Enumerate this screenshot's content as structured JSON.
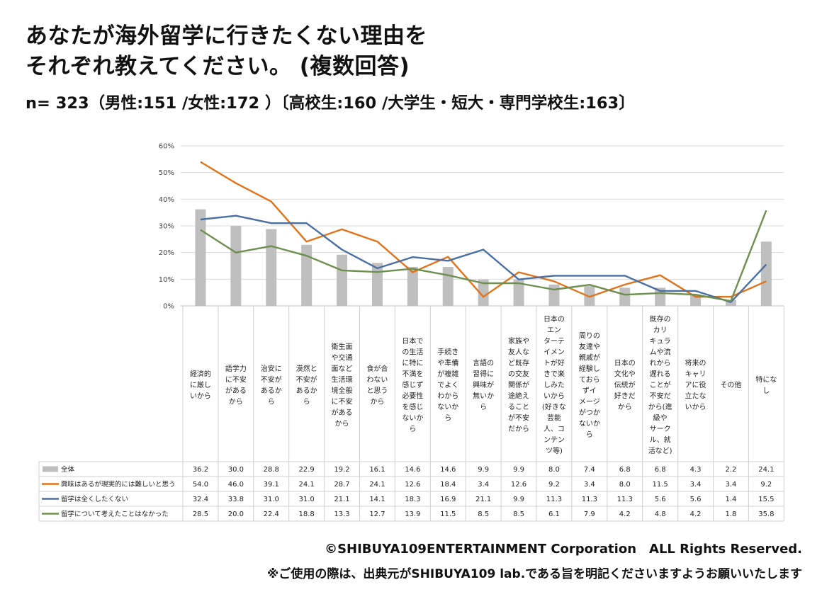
{
  "title": {
    "line1": "あなたが海外留学に行きたくない理由を",
    "line2": "それぞれ教えてください。 (複数回答)"
  },
  "sample_note": "n= 323（男性:151 /女性:172 ）〔高校生:160 /大学生・短大・専門学校生:163〕",
  "footer": {
    "copyright": "©SHIBUYA109ENTERTAINMENT Corporation　ALL Rights Reserved.",
    "notice": "※ご使用の際は、出典元がSHIBUYA109 lab.である旨を明記くださいますようお願いいたします"
  },
  "chart_data": {
    "type": "bar",
    "ylim": [
      0,
      60
    ],
    "yticks": [
      "0%",
      "10%",
      "20%",
      "30%",
      "40%",
      "50%",
      "60%"
    ],
    "grid": true,
    "categories": [
      [
        "経済的",
        "に厳し",
        "いから"
      ],
      [
        "語学力",
        "に不安",
        "がある",
        "から"
      ],
      [
        "治安に",
        "不安が",
        "あるか",
        "ら"
      ],
      [
        "漠然と",
        "不安が",
        "あるか",
        "ら"
      ],
      [
        "衛生面",
        "や交通",
        "面など",
        "生活環",
        "境全般",
        "に不安",
        "がある",
        "から"
      ],
      [
        "食が合",
        "わない",
        "と思う",
        "から"
      ],
      [
        "日本で",
        "の生活",
        "に特に",
        "不満を",
        "感じず",
        "必要性",
        "を感じ",
        "ないか",
        "ら"
      ],
      [
        "手続き",
        "や準備",
        "が複雑",
        "でよく",
        "わから",
        "ないか",
        "ら"
      ],
      [
        "言語の",
        "習得に",
        "興味が",
        "無いか",
        "ら"
      ],
      [
        "家族や",
        "友人な",
        "ど既存",
        "の交友",
        "関係が",
        "途絶え",
        "ること",
        "が不安",
        "だから"
      ],
      [
        "日本の",
        "エン",
        "ターテ",
        "イメン",
        "トが好",
        "きで楽",
        "しみた",
        "いから",
        "(好きな",
        "芸能",
        "人、コ",
        "ンテン",
        "ツ等)"
      ],
      [
        "周りの",
        "友達や",
        "親戚が",
        "経験し",
        "ておら",
        "ずイ",
        "メージ",
        "がつか",
        "ないか",
        "ら"
      ],
      [
        "日本の",
        "文化や",
        "伝統が",
        "好きだ",
        "から"
      ],
      [
        "既存の",
        "カリ",
        "キュラ",
        "ムや流",
        "れから",
        "遅れる",
        "ことが",
        "不安だ",
        "から(進",
        "級や",
        "サーク",
        "ル、就",
        "活など)"
      ],
      [
        "将来の",
        "キャリ",
        "アに役",
        "立たな",
        "いから"
      ],
      [
        "その他"
      ],
      [
        "特にな",
        "し"
      ]
    ],
    "series": [
      {
        "name": "全体",
        "kind": "bar",
        "color": "#bfbfbf",
        "values": [
          36.2,
          30.0,
          28.8,
          22.9,
          19.2,
          16.1,
          14.6,
          14.6,
          9.9,
          9.9,
          8.0,
          7.4,
          6.8,
          6.8,
          4.3,
          2.2,
          24.1
        ],
        "labels": [
          "36.2",
          "30.0",
          "28.8",
          "22.9",
          "19.2",
          "16.1",
          "14.6",
          "14.6",
          "9.9",
          "9.9",
          "8.0",
          "7.4",
          "6.8",
          "6.8",
          "4.3",
          "2.2",
          "24.1"
        ]
      },
      {
        "name": "興味はあるが現実的には難しいと思う",
        "kind": "line",
        "color": "#e2731b",
        "values": [
          54.0,
          46.0,
          39.1,
          24.1,
          28.7,
          24.1,
          12.6,
          18.4,
          3.4,
          12.6,
          9.2,
          3.4,
          8.0,
          11.5,
          3.4,
          3.4,
          9.2
        ],
        "labels": [
          "54.0",
          "46.0",
          "39.1",
          "24.1",
          "28.7",
          "24.1",
          "12.6",
          "18.4",
          "3.4",
          "12.6",
          "9.2",
          "3.4",
          "8.0",
          "11.5",
          "3.4",
          "3.4",
          "9.2"
        ]
      },
      {
        "name": "留学は全くしたくない",
        "kind": "line",
        "color": "#4a6fa5",
        "values": [
          32.4,
          33.8,
          31.0,
          31.0,
          21.1,
          14.1,
          18.3,
          16.9,
          21.1,
          9.9,
          11.3,
          11.3,
          11.3,
          5.6,
          5.6,
          1.4,
          15.5
        ],
        "labels": [
          "32.4",
          "33.8",
          "31.0",
          "31.0",
          "21.1",
          "14.1",
          "18.3",
          "16.9",
          "21.1",
          "9.9",
          "11.3",
          "11.3",
          "11.3",
          "5.6",
          "5.6",
          "1.4",
          "15.5"
        ]
      },
      {
        "name": "留学について考えたことはなかった",
        "kind": "line",
        "color": "#6e8f4f",
        "values": [
          28.5,
          20.0,
          22.4,
          18.8,
          13.3,
          12.7,
          13.9,
          11.5,
          8.5,
          8.5,
          6.1,
          7.9,
          4.2,
          4.8,
          4.2,
          1.8,
          35.8
        ],
        "labels": [
          "28.5",
          "20.0",
          "22.4",
          "18.8",
          "13.3",
          "12.7",
          "13.9",
          "11.5",
          "8.5",
          "8.5",
          "6.1",
          "7.9",
          "4.2",
          "4.8",
          "4.2",
          "1.8",
          "35.8"
        ]
      }
    ]
  }
}
